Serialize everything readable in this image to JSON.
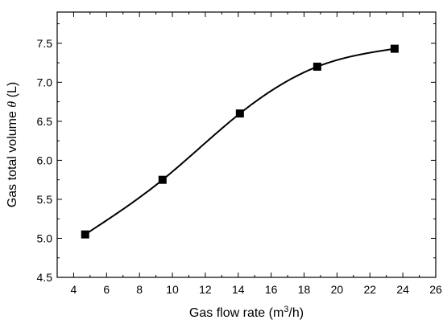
{
  "chart_data": {
    "type": "scatter",
    "xlabel": {
      "pre": "Gas flow rate (m",
      "sup": "3",
      "post": "/h)"
    },
    "ylabel": {
      "pre": "Gas total volume ",
      "sym": "θ",
      "post": " (L)"
    },
    "xlim": [
      3,
      26
    ],
    "ylim": [
      4.5,
      7.9
    ],
    "xticks": [
      4,
      6,
      8,
      10,
      12,
      14,
      16,
      18,
      20,
      22,
      24,
      26
    ],
    "yticks": [
      4.5,
      5.0,
      5.5,
      6.0,
      6.5,
      7.0,
      7.5
    ],
    "ytick_labels": [
      "4.5",
      "5.0",
      "5.5",
      "6.0",
      "6.5",
      "7.0",
      "7.5"
    ],
    "series": [
      {
        "x": [
          4.7,
          9.4,
          14.1,
          18.8,
          23.5
        ],
        "y": [
          5.05,
          5.75,
          6.6,
          7.2,
          7.43
        ],
        "marker": "square",
        "fit_curve": true
      }
    ],
    "grid": false
  }
}
